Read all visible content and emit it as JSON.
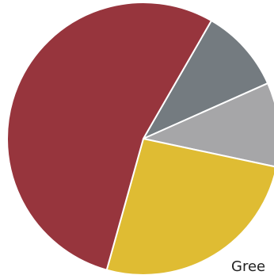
{
  "chart_data": {
    "type": "pie",
    "start_angle_deg": -60,
    "direction": "clockwise",
    "legend": "none",
    "slices": [
      {
        "label": "",
        "value": 10,
        "color": "#747b80"
      },
      {
        "label": "",
        "value": 10,
        "color": "#a6a6a8"
      },
      {
        "label": "Gree",
        "value": 26,
        "color": "#dfbc33"
      },
      {
        "label": "",
        "value": 54,
        "color": "#97353d"
      }
    ]
  }
}
